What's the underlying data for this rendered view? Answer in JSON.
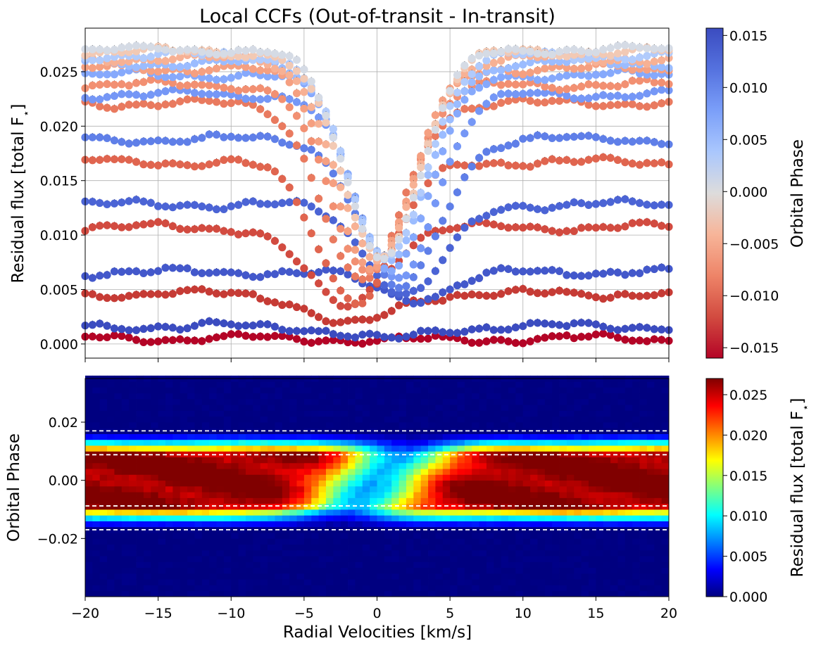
{
  "figure": {
    "title": "Local CCFs (Out-of-transit - In-transit)",
    "top_ylabel": "Residual flux [total F",
    "bottom_ylabel": "Orbital Phase",
    "xlabel": "Radial Velocities [km/s]",
    "top_colorbar_label": "Orbital Phase",
    "bottom_colorbar_label": "Residual flux [total F",
    "flux_symbol": "⋆",
    "flux_suffix": "]"
  },
  "chart_data": [
    {
      "type": "scatter",
      "title": "Local CCFs (Out-of-transit - In-transit)",
      "xlabel": "",
      "ylabel": "Residual flux [total F⋆]",
      "xlim": [
        -20,
        20
      ],
      "ylim": [
        -0.0013,
        0.029
      ],
      "x_ticks": [
        -20,
        -15,
        -10,
        -5,
        0,
        5,
        10,
        15,
        20
      ],
      "y_ticks": [
        0.0,
        0.005,
        0.01,
        0.015,
        0.02,
        0.025
      ],
      "y_tick_labels": [
        "0.000",
        "0.005",
        "0.010",
        "0.015",
        "0.020",
        "0.025"
      ],
      "grid": true,
      "error_bars": true,
      "colormap": "coolwarm (reversed: red = negative phase, blue = positive phase)",
      "x_step": 0.5,
      "series": [
        {
          "phase": -0.0162,
          "color": "#b40426",
          "continuum": 0.0005,
          "line_min": 0.0003,
          "line_center": 1.5,
          "line_width": 2.6
        },
        {
          "phase": 0.0158,
          "color": "#3b4cc0",
          "continuum": 0.0016,
          "line_min": 0.0004,
          "line_center": 0.5,
          "line_width": 2.6
        },
        {
          "phase": -0.0145,
          "color": "#c63b35",
          "continuum": 0.0046,
          "line_min": 0.0017,
          "line_center": -1.8,
          "line_width": 2.6
        },
        {
          "phase": 0.014,
          "color": "#4358cb",
          "continuum": 0.0066,
          "line_min": 0.0042,
          "line_center": 2.5,
          "line_width": 2.6
        },
        {
          "phase": -0.0128,
          "color": "#d24b40",
          "continuum": 0.0107,
          "line_min": 0.0035,
          "line_center": -2.2,
          "line_width": 2.6
        },
        {
          "phase": 0.0124,
          "color": "#4b64d5",
          "continuum": 0.0128,
          "line_min": 0.0045,
          "line_center": 2.0,
          "line_width": 2.6
        },
        {
          "phase": -0.011,
          "color": "#e0654f",
          "continuum": 0.0167,
          "line_min": 0.004,
          "line_center": -1.4,
          "line_width": 2.6
        },
        {
          "phase": 0.0106,
          "color": "#5f7fe8",
          "continuum": 0.0188,
          "line_min": 0.005,
          "line_center": 1.6,
          "line_width": 2.6
        },
        {
          "phase": -0.0092,
          "color": "#e97a5f",
          "continuum": 0.0221,
          "line_min": 0.0055,
          "line_center": -1.0,
          "line_width": 2.6
        },
        {
          "phase": 0.0088,
          "color": "#7597f6",
          "continuum": 0.0229,
          "line_min": 0.006,
          "line_center": 1.3,
          "line_width": 2.6
        },
        {
          "phase": -0.0072,
          "color": "#f29072",
          "continuum": 0.0238,
          "line_min": 0.0065,
          "line_center": -0.6,
          "line_width": 2.6
        },
        {
          "phase": 0.0068,
          "color": "#86a9fc",
          "continuum": 0.0247,
          "line_min": 0.007,
          "line_center": 1.0,
          "line_width": 2.6
        },
        {
          "phase": -0.0052,
          "color": "#f5a081",
          "continuum": 0.0253,
          "line_min": 0.0072,
          "line_center": -0.3,
          "line_width": 2.6
        },
        {
          "phase": 0.0048,
          "color": "#9bbcff",
          "continuum": 0.0258,
          "line_min": 0.0075,
          "line_center": 0.8,
          "line_width": 2.6
        },
        {
          "phase": -0.0032,
          "color": "#f7b194",
          "continuum": 0.0262,
          "line_min": 0.0075,
          "line_center": 0.0,
          "line_width": 2.6
        },
        {
          "phase": 0.0028,
          "color": "#b1cbfc",
          "continuum": 0.0265,
          "line_min": 0.0078,
          "line_center": 0.6,
          "line_width": 2.6
        },
        {
          "phase": -0.0012,
          "color": "#f2c9b4",
          "continuum": 0.0268,
          "line_min": 0.008,
          "line_center": 0.2,
          "line_width": 2.6
        },
        {
          "phase": 0.001,
          "color": "#d5dbe5",
          "continuum": 0.027,
          "line_min": 0.0082,
          "line_center": 0.4,
          "line_width": 2.6
        }
      ]
    },
    {
      "type": "heatmap",
      "xlabel": "Radial Velocities [km/s]",
      "ylabel": "Orbital Phase",
      "xlim": [
        -20,
        20
      ],
      "ylim": [
        -0.04,
        0.035
      ],
      "x_ticks": [
        -20,
        -15,
        -10,
        -5,
        0,
        5,
        10,
        15,
        20
      ],
      "x_tick_labels": [
        "−20",
        "−15",
        "−10",
        "−5",
        "0",
        "5",
        "10",
        "15",
        "20"
      ],
      "y_ticks": [
        0.02,
        0.0,
        -0.02
      ],
      "y_tick_labels": [
        "0.02",
        "0.00",
        "−0.02"
      ],
      "colormap": "jet",
      "clim": [
        0.0,
        0.027
      ],
      "x_step": 0.5,
      "phase_step": 0.002,
      "reference_lines": [
        0.017,
        0.0088,
        -0.0088,
        -0.017
      ],
      "transit_full_phase": 0.0088,
      "transit_edge_phase": 0.014,
      "line_trace": {
        "center_at_ingress": -2.5,
        "center_at_egress": 2.5,
        "width": 2.6,
        "depth": 0.7
      }
    }
  ],
  "colorbars": [
    {
      "label": "Orbital Phase",
      "colormap": "coolwarm",
      "range": [
        -0.016,
        0.0157
      ],
      "ticks": [
        0.015,
        0.01,
        0.005,
        0.0,
        -0.005,
        -0.01,
        -0.015
      ],
      "tick_labels": [
        "0.015",
        "0.010",
        "0.005",
        "0.000",
        "−0.005",
        "−0.010",
        "−0.015"
      ]
    },
    {
      "label": "Residual flux [total F⋆]",
      "colormap": "jet",
      "range": [
        0.0,
        0.027
      ],
      "ticks": [
        0.025,
        0.02,
        0.015,
        0.01,
        0.005,
        0.0
      ],
      "tick_labels": [
        "0.025",
        "0.020",
        "0.015",
        "0.010",
        "0.005",
        "0.000"
      ]
    }
  ]
}
